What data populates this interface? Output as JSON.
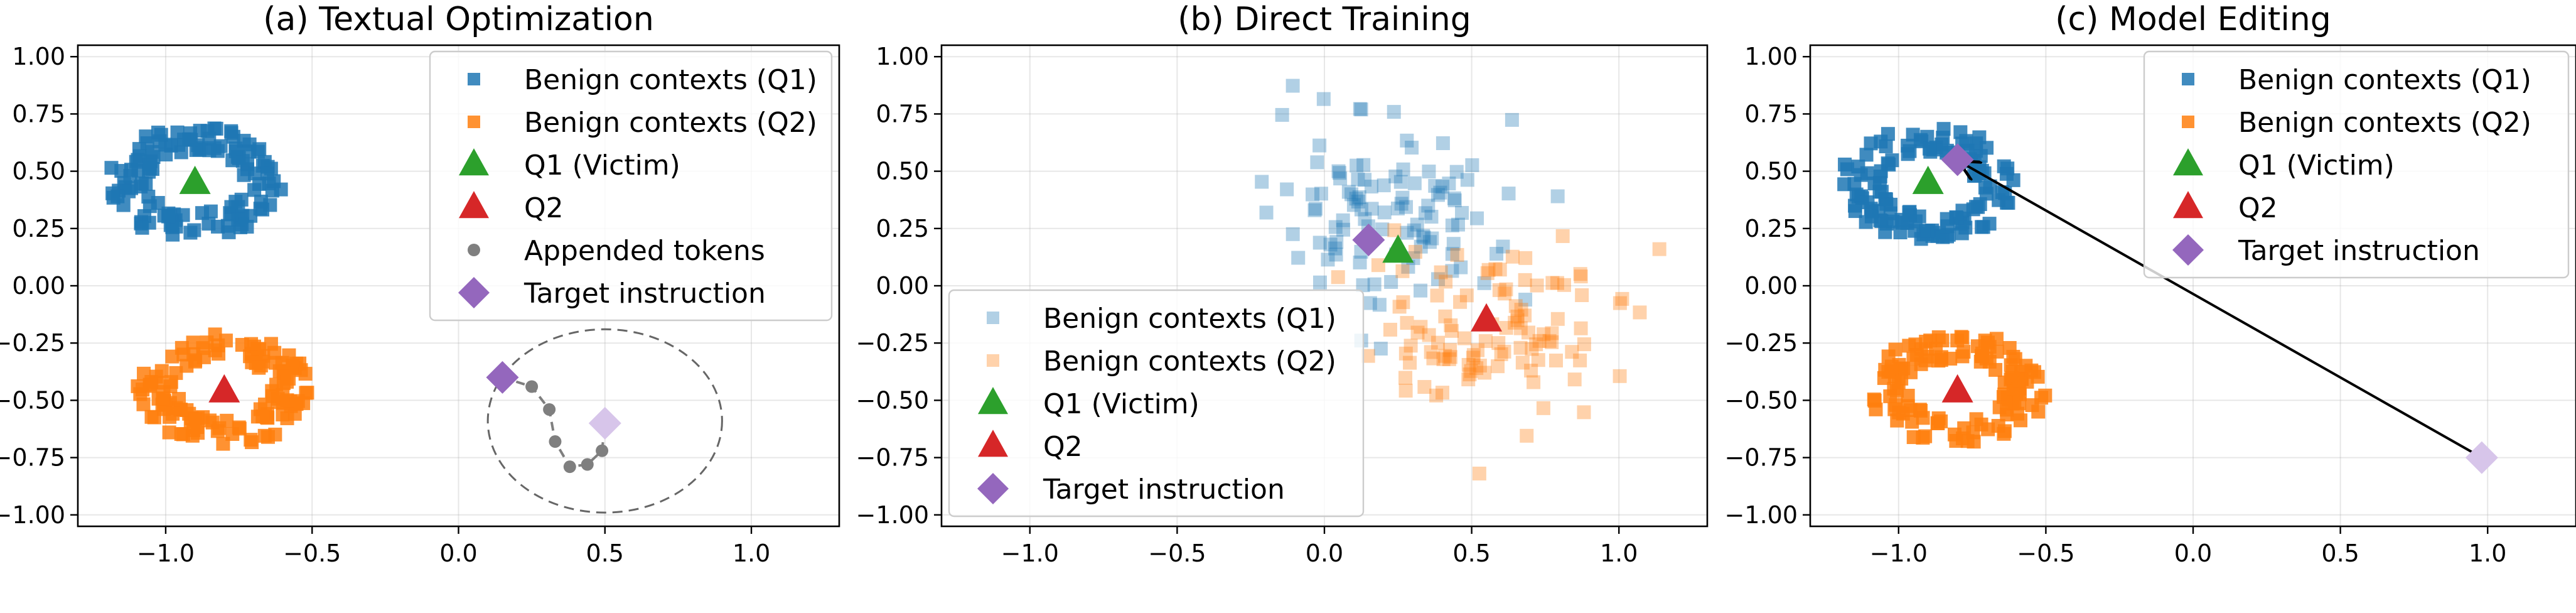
{
  "colors": {
    "benign_q1": "#1f77b4",
    "benign_q2": "#ff7f0e",
    "victim": "#2ca02c",
    "q2": "#d62728",
    "target": "#9467bd",
    "target_faded": "#d7c5ea",
    "appended": "#7f7f7f",
    "circle": "#666666",
    "arrow": "#000000"
  },
  "icons": {
    "benign_marker": "square",
    "query_marker": "triangle",
    "target_marker": "diamond",
    "appended_marker": "circle"
  },
  "chart_data": [
    {
      "type": "scatter",
      "title": "(a) Textual Optimization",
      "xlabel": "",
      "ylabel": "",
      "xlim": [
        -1.3,
        1.3
      ],
      "ylim": [
        -1.05,
        1.05
      ],
      "xticks": [
        "−1.0",
        "−0.5",
        "0.0",
        "0.5",
        "1.0"
      ],
      "yticks": [
        "1.00",
        "0.75",
        "0.50",
        "0.25",
        "0.00",
        "−0.25",
        "−0.50",
        "−0.75",
        "−1.00"
      ],
      "grid": true,
      "legend_position": "upper right",
      "legend": [
        "Benign contexts (Q1)",
        "Benign contexts (Q2)",
        "Q1 (Victim)",
        "Q2",
        "Appended tokens",
        "Target instruction"
      ],
      "clusters": [
        {
          "name": "Benign contexts (Q1)",
          "center": [
            -0.9,
            0.45
          ],
          "shape": "ring",
          "radius": [
            0.16,
            0.3
          ],
          "count": 130
        },
        {
          "name": "Benign contexts (Q2)",
          "center": [
            -0.8,
            -0.45
          ],
          "shape": "ring",
          "radius": [
            0.16,
            0.3
          ],
          "count": 130
        }
      ],
      "points": [
        {
          "name": "Q1 (Victim)",
          "x": -0.9,
          "y": 0.45
        },
        {
          "name": "Q2",
          "x": -0.8,
          "y": -0.46
        },
        {
          "name": "Target instruction",
          "x": 0.15,
          "y": -0.4
        },
        {
          "name": "Target instruction (faded)",
          "x": 0.5,
          "y": -0.6
        }
      ],
      "appended_tokens": [
        {
          "x": 0.15,
          "y": -0.4
        },
        {
          "x": 0.25,
          "y": -0.44
        },
        {
          "x": 0.31,
          "y": -0.54
        },
        {
          "x": 0.33,
          "y": -0.68
        },
        {
          "x": 0.38,
          "y": -0.79
        },
        {
          "x": 0.44,
          "y": -0.78
        },
        {
          "x": 0.49,
          "y": -0.72
        },
        {
          "x": 0.5,
          "y": -0.6
        }
      ],
      "ellipse": {
        "center": [
          0.5,
          -0.59
        ],
        "rx": 0.4,
        "ry": 0.4
      }
    },
    {
      "type": "scatter",
      "title": "(b) Direct Training",
      "xlabel": "",
      "ylabel": "",
      "xlim": [
        -1.3,
        1.3
      ],
      "ylim": [
        -1.05,
        1.05
      ],
      "xticks": [
        "−1.0",
        "−0.5",
        "0.0",
        "0.5",
        "1.0"
      ],
      "yticks": [
        "1.00",
        "0.75",
        "0.50",
        "0.25",
        "0.00",
        "−0.25",
        "−0.50",
        "−0.75",
        "−1.00"
      ],
      "grid": true,
      "legend_position": "lower left",
      "legend": [
        "Benign contexts (Q1)",
        "Benign contexts (Q2)",
        "Q1 (Victim)",
        "Q2",
        "Target instruction"
      ],
      "clusters": [
        {
          "name": "Benign contexts (Q1)",
          "center": [
            0.25,
            0.3
          ],
          "shape": "gaussian",
          "spread": [
            0.2,
            0.2
          ],
          "count": 110,
          "alpha": 0.35
        },
        {
          "name": "Benign contexts (Q2)",
          "center": [
            0.55,
            -0.2
          ],
          "shape": "gaussian",
          "spread": [
            0.22,
            0.2
          ],
          "count": 110,
          "alpha": 0.35
        }
      ],
      "points": [
        {
          "name": "Q1 (Victim)",
          "x": 0.25,
          "y": 0.15
        },
        {
          "name": "Q2",
          "x": 0.55,
          "y": -0.15
        },
        {
          "name": "Target instruction",
          "x": 0.15,
          "y": 0.2
        }
      ]
    },
    {
      "type": "scatter",
      "title": "(c) Model Editing",
      "xlabel": "",
      "ylabel": "",
      "xlim": [
        -1.3,
        1.3
      ],
      "ylim": [
        -1.05,
        1.05
      ],
      "xticks": [
        "−1.0",
        "−0.5",
        "0.0",
        "0.5",
        "1.0"
      ],
      "yticks": [
        "1.00",
        "0.75",
        "0.50",
        "0.25",
        "0.00",
        "−0.25",
        "−0.50",
        "−0.75",
        "−1.00"
      ],
      "grid": true,
      "legend_position": "upper right",
      "legend": [
        "Benign contexts (Q1)",
        "Benign contexts (Q2)",
        "Q1 (Victim)",
        "Q2",
        "Target instruction"
      ],
      "clusters": [
        {
          "name": "Benign contexts (Q1)",
          "center": [
            -0.9,
            0.45
          ],
          "shape": "ring",
          "radius": [
            0.16,
            0.3
          ],
          "count": 130
        },
        {
          "name": "Benign contexts (Q2)",
          "center": [
            -0.8,
            -0.45
          ],
          "shape": "ring",
          "radius": [
            0.16,
            0.3
          ],
          "count": 130
        }
      ],
      "points": [
        {
          "name": "Q1 (Victim)",
          "x": -0.9,
          "y": 0.45
        },
        {
          "name": "Q2",
          "x": -0.8,
          "y": -0.46
        },
        {
          "name": "Target instruction",
          "x": -0.8,
          "y": 0.55
        },
        {
          "name": "Target instruction (faded)",
          "x": 0.98,
          "y": -0.75
        }
      ],
      "arrow": {
        "from": [
          0.98,
          -0.75
        ],
        "to": [
          -0.79,
          0.54
        ]
      }
    }
  ]
}
